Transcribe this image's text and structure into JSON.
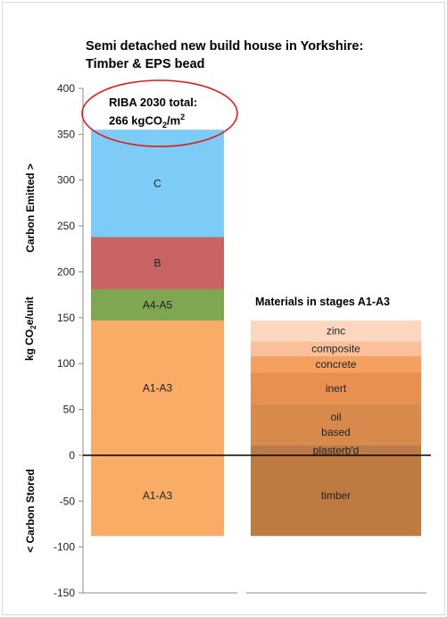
{
  "chart_data": {
    "type": "bar",
    "stacked": true,
    "title": [
      "Semi detached new build house in Yorkshire:",
      "Timber & EPS bead"
    ],
    "ylabel_parts": [
      "< Carbon Stored",
      "kg CO",
      "2",
      "e/unit",
      "Carbon Emitted >"
    ],
    "ylim": [
      -150,
      400
    ],
    "yticks": [
      -150,
      -100,
      -50,
      0,
      50,
      100,
      150,
      200,
      250,
      300,
      350,
      400
    ],
    "grid": false,
    "callout": {
      "line1": "RIBA 2030 total:",
      "line2_prefix": "266 kgCO",
      "line2_sub": "2",
      "line2_suffix": "/m",
      "line2_sup": "2",
      "color": "#e31a1c"
    },
    "stage_bar": {
      "segments": [
        {
          "label": "A1-A3",
          "from": -88,
          "to": 0,
          "color": "#f9ac66"
        },
        {
          "label": "A1-A3",
          "from": 0,
          "to": 147,
          "color": "#f9ac66"
        },
        {
          "label": "A4-A5",
          "from": 147,
          "to": 181,
          "color": "#7fa650"
        },
        {
          "label": "B",
          "from": 181,
          "to": 238,
          "color": "#c96464"
        },
        {
          "label": "C",
          "from": 238,
          "to": 355,
          "color": "#7cccf7"
        }
      ]
    },
    "materials_bar": {
      "title": "Materials in stages A1-A3",
      "segments": [
        {
          "label": "timber",
          "from": -88,
          "to": 0,
          "color": "#bf7a42"
        },
        {
          "label": "plasterb'd",
          "from": 0,
          "to": 11,
          "color": "#bc7a47"
        },
        {
          "label": "oil\nbased",
          "from": 11,
          "to": 56,
          "color": "#d88a4c"
        },
        {
          "label": "inert",
          "from": 56,
          "to": 90,
          "color": "#e89050"
        },
        {
          "label": "concrete",
          "from": 90,
          "to": 108,
          "color": "#f5a060"
        },
        {
          "label": "composite",
          "from": 108,
          "to": 124,
          "color": "#f9c09b"
        },
        {
          "label": "zinc",
          "from": 124,
          "to": 147,
          "color": "#fcd7bf"
        }
      ]
    }
  }
}
